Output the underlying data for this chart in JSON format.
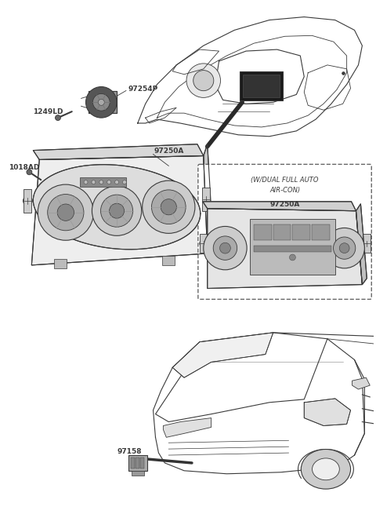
{
  "bg_color": "#ffffff",
  "fig_width": 4.8,
  "fig_height": 6.55,
  "dpi": 100,
  "lc": "#3a3a3a",
  "lc_light": "#888888",
  "label_fontsize": 6.5,
  "label_fontsize_sm": 6.0,
  "box_text_line1": "(W/DUAL FULL AUTO",
  "box_text_line2": "AIR-CON)",
  "label_97254P": "97254P",
  "label_1249LD": "1249LD",
  "label_97250A": "97250A",
  "label_1018AD": "1018AD",
  "label_97158": "97158"
}
